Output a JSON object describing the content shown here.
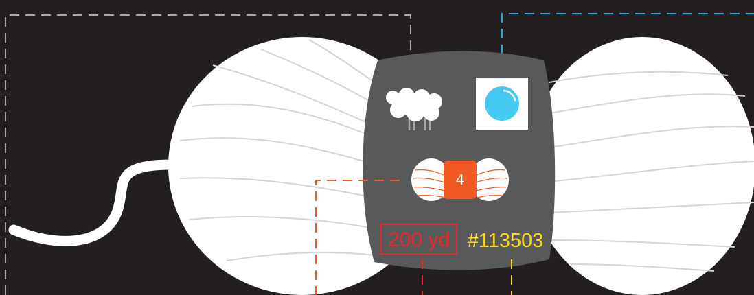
{
  "label": {
    "weight_number": "4",
    "yardage": "200 yd",
    "color_code": "#113503"
  },
  "icons": {
    "fiber": "sheep-icon",
    "color_swatch": "color-swatch-icon",
    "weight": "yarn-weight-icon"
  },
  "colors": {
    "background": "#231f20",
    "yarn": "#ffffff",
    "yarn_strands": "#d4d4d4",
    "label_band": "#58595b",
    "fiber_callout": "#a7a9ac",
    "swatch_callout": "#29abe2",
    "swatch_fill": "#45c8f2",
    "weight_callout": "#f15a24",
    "yardage_callout": "#e8292a",
    "color_code_callout": "#ffd619"
  }
}
